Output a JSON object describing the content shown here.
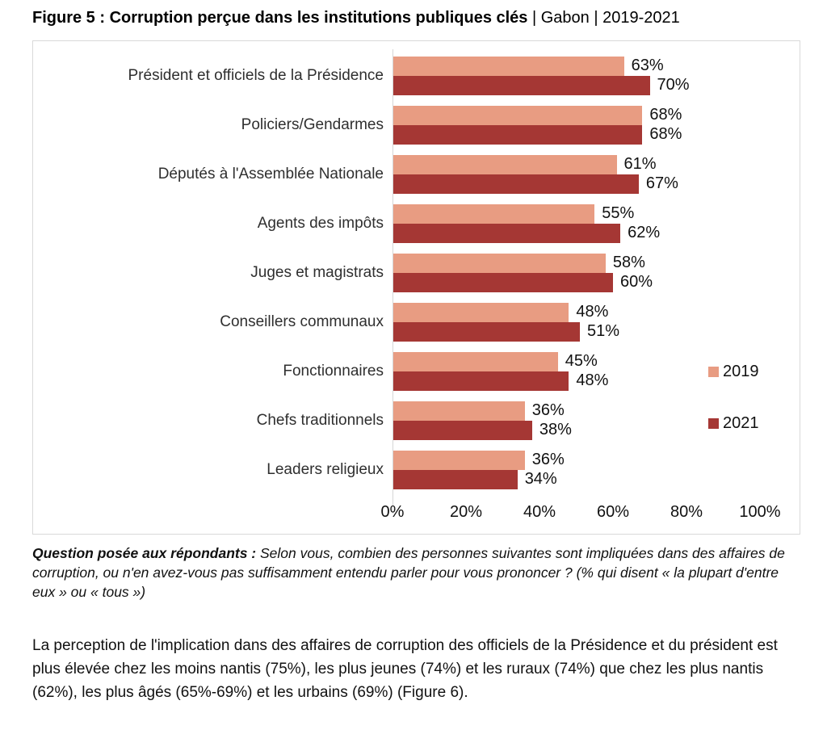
{
  "title": {
    "main": "Figure 5 : Corruption perçue dans les institutions publiques clés",
    "suffix": " | Gabon | 2019-2021"
  },
  "chart_data": {
    "type": "bar",
    "orientation": "horizontal",
    "title": "Corruption perçue dans les institutions publiques clés",
    "country": "Gabon",
    "period": "2019-2021",
    "categories": [
      "Président et officiels de la Présidence",
      "Policiers/Gendarmes",
      "Députés à l'Assemblée Nationale",
      "Agents des impôts",
      "Juges et magistrats",
      "Conseillers communaux",
      "Fonctionnaires",
      "Chefs traditionnels",
      "Leaders religieux"
    ],
    "series": [
      {
        "name": "2019",
        "color": "#E89C82",
        "values": [
          63,
          68,
          61,
          55,
          58,
          48,
          45,
          36,
          36
        ]
      },
      {
        "name": "2021",
        "color": "#A53734",
        "values": [
          70,
          68,
          67,
          62,
          60,
          51,
          48,
          38,
          34
        ]
      }
    ],
    "value_suffix": "%",
    "xlim": [
      0,
      100
    ],
    "x_ticks": [
      {
        "label": "0%",
        "value": 0
      },
      {
        "label": "20%",
        "value": 20
      },
      {
        "label": "40%",
        "value": 40
      },
      {
        "label": "60%",
        "value": 60
      },
      {
        "label": "80%",
        "value": 80
      },
      {
        "label": "100%",
        "value": 100
      }
    ],
    "grid": false,
    "legend_position": "right"
  },
  "footnote": {
    "lead": "Question posée aux répondants :",
    "text": " Selon vous, combien des personnes suivantes sont impliquées dans des affaires de corruption, ou n'en avez-vous pas suffisamment entendu parler pour vous prononcer ? (% qui disent « la plupart d'entre eux » ou « tous »)"
  },
  "body_text": "La perception de l'implication dans des affaires de corruption des officiels de la Présidence et du président est plus élevée chez les moins nantis (75%), les plus jeunes (74%) et les ruraux (74%) que chez les plus nantis (62%), les plus âgés (65%-69%) et les urbains (69%) (Figure 6)."
}
